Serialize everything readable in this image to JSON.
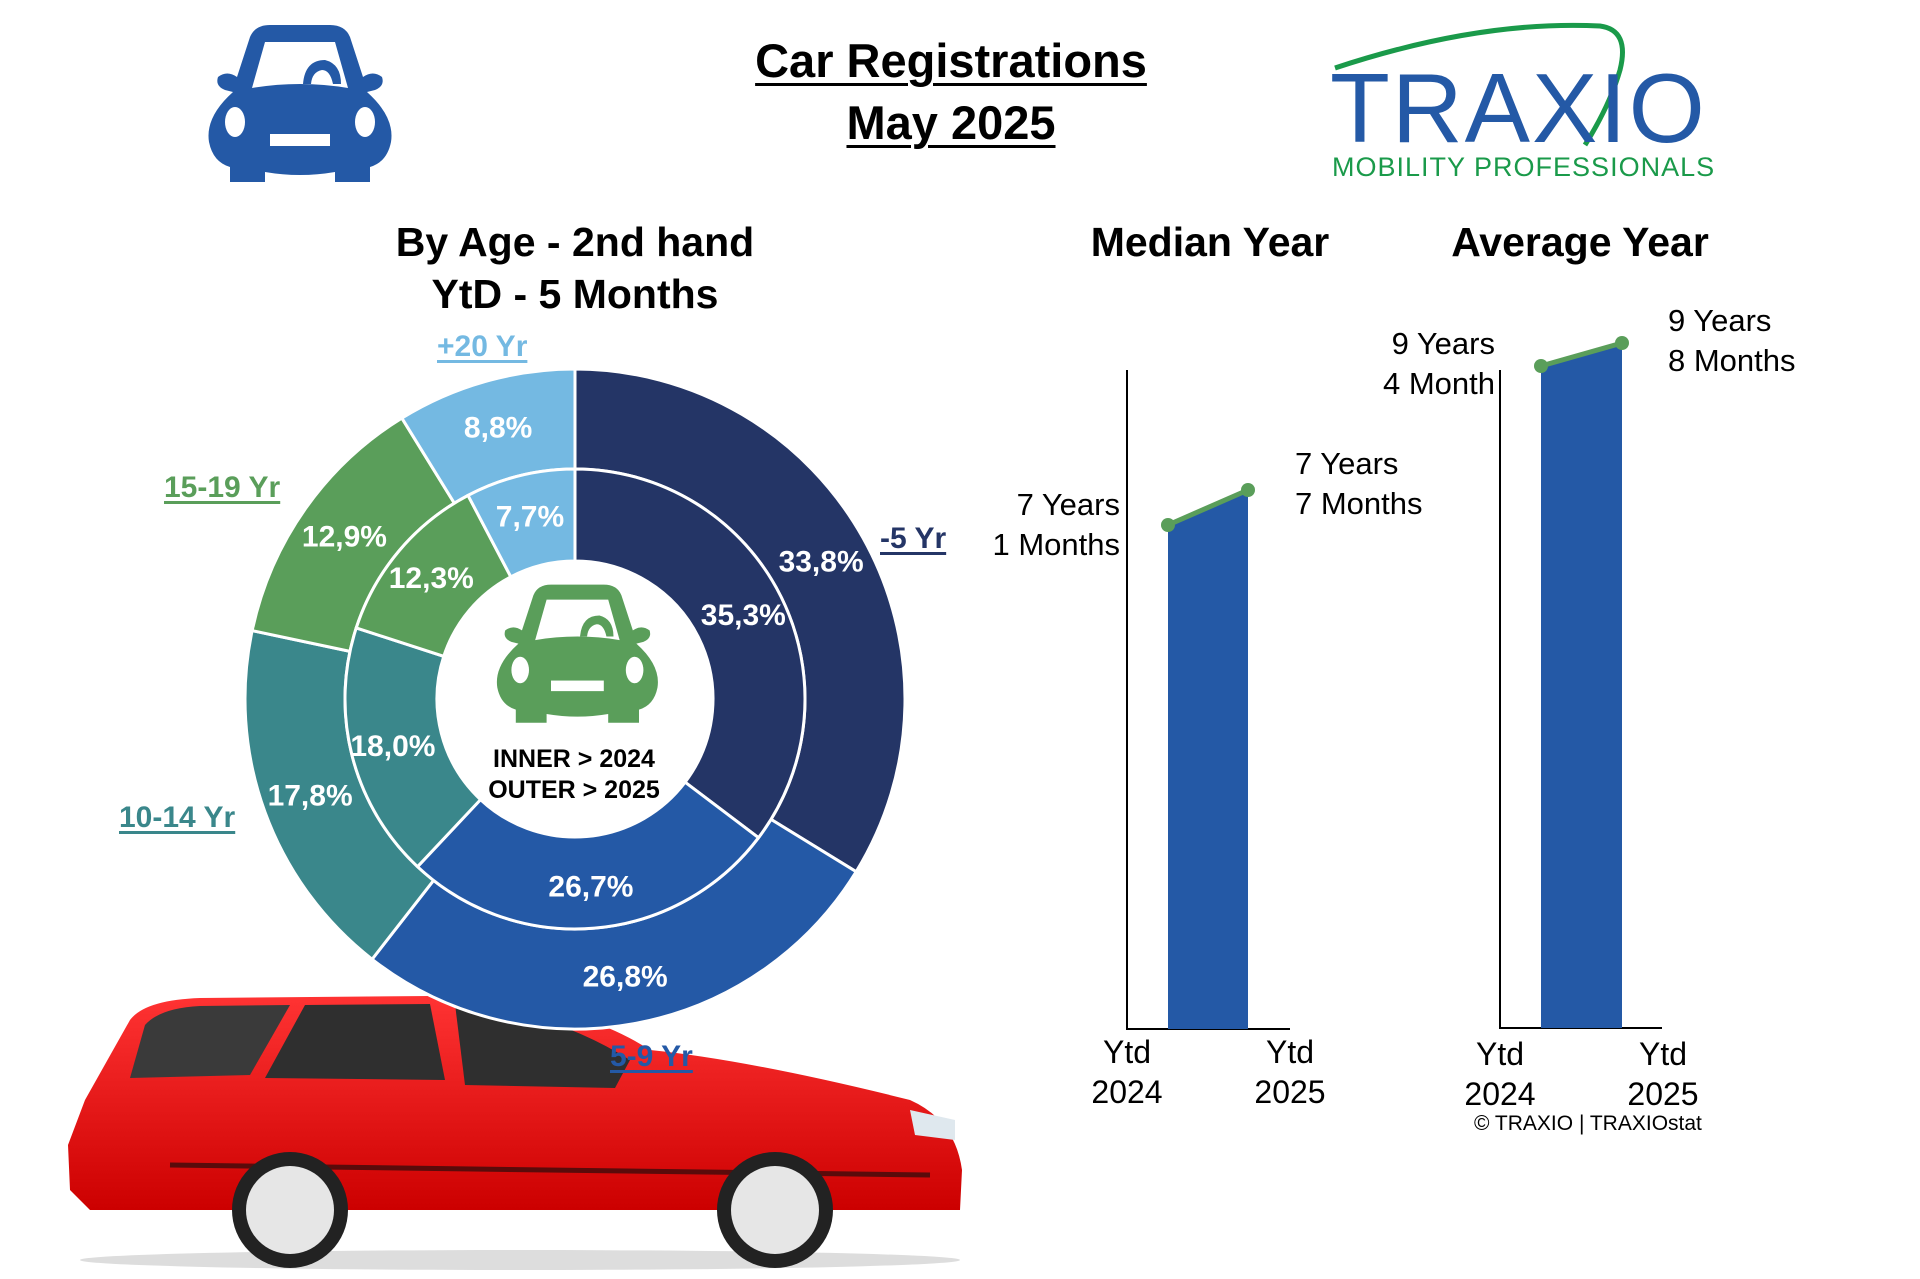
{
  "header": {
    "title_line1": "Car Registrations",
    "title_line2": "May 2025",
    "logo": {
      "name": "TRAXIO",
      "tagline": "MOBILITY PROFESSIONALS",
      "brand_blue": "#2459a6",
      "brand_green": "#1a9a4a"
    },
    "top_left_icon": "car-front-icon"
  },
  "donut": {
    "title_line1": "By Age - 2nd hand",
    "title_line2": "YtD - 5 Months",
    "center_line1": "INNER > 2024",
    "center_line2": "OUTER > 2025",
    "center_icon": "car-front-icon"
  },
  "median": {
    "title": "Median Year",
    "left_label_line1": "7 Years",
    "left_label_line2": "1 Months",
    "right_label_line1": "7 Years",
    "right_label_line2": "7 Months",
    "x_left_line1": "Ytd",
    "x_left_line2": "2024",
    "x_right_line1": "Ytd",
    "x_right_line2": "2025"
  },
  "average": {
    "title": "Average Year",
    "left_label_line1": "9 Years",
    "left_label_line2": "4 Month",
    "right_label_line1": "9 Years",
    "right_label_line2": "8 Months",
    "x_left_line1": "Ytd",
    "x_left_line2": "2024",
    "x_right_line1": "Ytd",
    "x_right_line2": "2025"
  },
  "footer": {
    "copyright": "© TRAXIO | TRAXIOstat"
  },
  "chart_data": [
    {
      "type": "pie",
      "title": "By Age - 2nd hand, YtD - 5 Months",
      "subtype": "double-donut",
      "categories": [
        "-5 Yr",
        "5-9 Yr",
        "10-14 Yr",
        "15-19 Yr",
        "+20 Yr"
      ],
      "colors": [
        "#243566",
        "#2459a6",
        "#3a878b",
        "#5a9e5a",
        "#74b9e2"
      ],
      "series": [
        {
          "name": "Inner (2024)",
          "values": [
            35.3,
            26.7,
            18.0,
            12.3,
            7.7
          ],
          "labels": [
            "35,3%",
            "26,7%",
            "18,0%",
            "12,3%",
            "7,7%"
          ]
        },
        {
          "name": "Outer (2025)",
          "values": [
            33.8,
            26.8,
            17.8,
            12.9,
            8.8
          ],
          "labels": [
            "33,8%",
            "26,8%",
            "17,8%",
            "12,9%",
            "8,8%"
          ]
        }
      ],
      "annotations": [
        "INNER > 2024",
        "OUTER > 2025"
      ]
    },
    {
      "type": "area",
      "title": "Median Year",
      "categories": [
        "Ytd 2024",
        "Ytd 2025"
      ],
      "values_years": [
        7.083,
        7.583
      ],
      "value_labels": [
        "7 Years 1 Months",
        "7 Years 7 Months"
      ],
      "fill_color": "#2459a6",
      "line_color": "#5a9e5a"
    },
    {
      "type": "area",
      "title": "Average Year",
      "categories": [
        "Ytd 2024",
        "Ytd 2025"
      ],
      "values_years": [
        9.333,
        9.667
      ],
      "value_labels": [
        "9 Years 4 Month",
        "9 Years 8 Months"
      ],
      "fill_color": "#2459a6",
      "line_color": "#5a9e5a"
    }
  ]
}
